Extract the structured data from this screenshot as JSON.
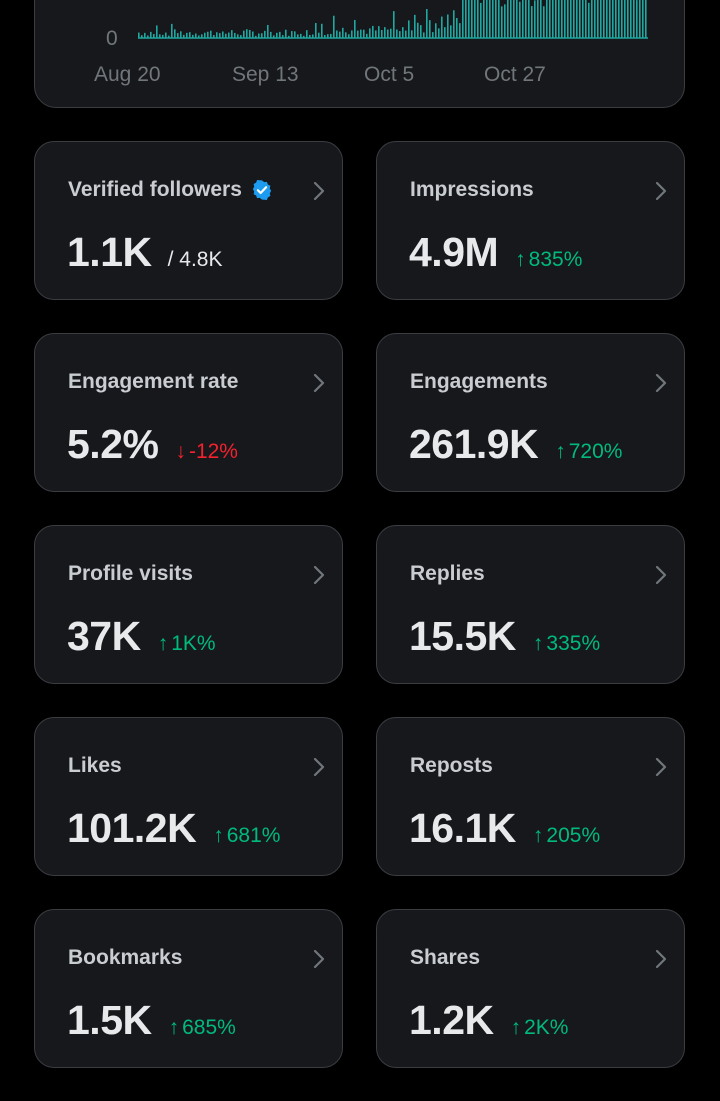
{
  "chart": {
    "y_zero_label": "0",
    "x_labels": [
      "Aug 20",
      "Sep 13",
      "Oct 5",
      "Oct 27"
    ],
    "bar_color": "#1fa8a0"
  },
  "colors": {
    "up": "#00ba7c",
    "down": "#f4212e",
    "verified": "#1d9bf0"
  },
  "metrics": [
    {
      "label": "Verified followers",
      "value": "1.1K",
      "sub": "/ 4.8K",
      "verified": true
    },
    {
      "label": "Impressions",
      "value": "4.9M",
      "arrow": "↑",
      "change": "835%",
      "direction": "up"
    },
    {
      "label": "Engagement rate",
      "value": "5.2%",
      "arrow": "↓",
      "change": "-12%",
      "direction": "down"
    },
    {
      "label": "Engagements",
      "value": "261.9K",
      "arrow": "↑",
      "change": "720%",
      "direction": "up"
    },
    {
      "label": "Profile visits",
      "value": "37K",
      "arrow": "↑",
      "change": "1K%",
      "direction": "up"
    },
    {
      "label": "Replies",
      "value": "15.5K",
      "arrow": "↑",
      "change": "335%",
      "direction": "up"
    },
    {
      "label": "Likes",
      "value": "101.2K",
      "arrow": "↑",
      "change": "681%",
      "direction": "up"
    },
    {
      "label": "Reposts",
      "value": "16.1K",
      "arrow": "↑",
      "change": "205%",
      "direction": "up"
    },
    {
      "label": "Bookmarks",
      "value": "1.5K",
      "arrow": "↑",
      "change": "685%",
      "direction": "up"
    },
    {
      "label": "Shares",
      "value": "1.2K",
      "arrow": "↑",
      "change": "2K%",
      "direction": "up"
    }
  ]
}
